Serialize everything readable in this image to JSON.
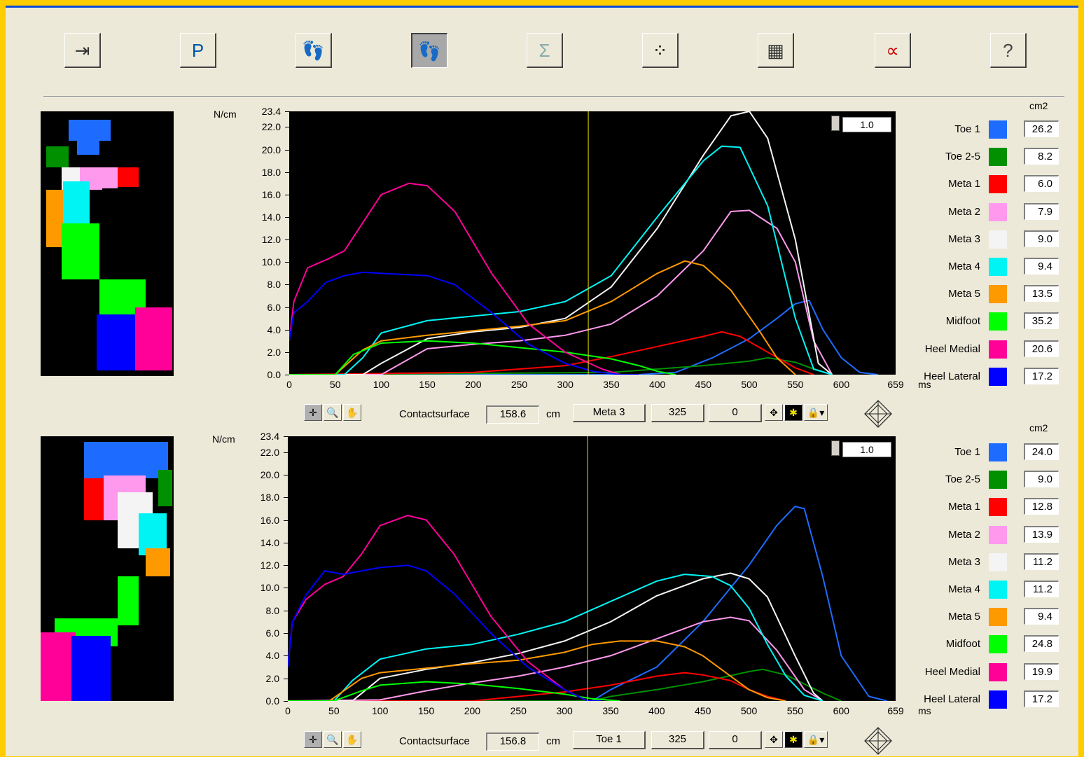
{
  "toolbar": [
    {
      "name": "exit-button",
      "icon": "exit-door-icon",
      "glyph": "⇥"
    },
    {
      "name": "p-button",
      "icon": "p-letter-icon",
      "glyph": "P"
    },
    {
      "name": "foot-regions-button",
      "icon": "foot-grid-icon",
      "glyph": "👣"
    },
    {
      "name": "foot-view-button",
      "icon": "foot-icon",
      "glyph": "👣"
    },
    {
      "name": "sum-button",
      "icon": "sigma-icon",
      "glyph": "Σ"
    },
    {
      "name": "sensor-grid-button",
      "icon": "dot-matrix-icon",
      "glyph": "⁘"
    },
    {
      "name": "table-button",
      "icon": "table-icon",
      "glyph": "▦"
    },
    {
      "name": "curve-button",
      "icon": "curve-icon",
      "glyph": "∝"
    },
    {
      "name": "help-button",
      "icon": "help-icon",
      "glyph": "?"
    }
  ],
  "legend_names": [
    "Toe 1",
    "Toe 2-5",
    "Meta 1",
    "Meta 2",
    "Meta 3",
    "Meta 4",
    "Meta 5",
    "Midfoot",
    "Heel Medial",
    "Heel Lateral"
  ],
  "legend_colors": [
    "#1e6cff",
    "#009000",
    "#ff0000",
    "#ff99ee",
    "#f4f4f4",
    "#00f4f4",
    "#ff9900",
    "#00ff00",
    "#ff0099",
    "#0000ff"
  ],
  "panels": [
    {
      "y_unit": "N/cm",
      "x_unit": "ms",
      "area_unit": "cm2",
      "zoom": "1.0",
      "values": [
        "26.2",
        "8.2",
        "6.0",
        "7.9",
        "9.0",
        "9.4",
        "13.5",
        "35.2",
        "20.6",
        "17.2"
      ],
      "contact_label": "Contactsurface",
      "contact_value": "158.6",
      "contact_unit": "cm",
      "selected_region": "Meta 3",
      "cursor_time": "325",
      "cursor_value": "0"
    },
    {
      "y_unit": "N/cm",
      "x_unit": "ms",
      "area_unit": "cm2",
      "zoom": "1.0",
      "values": [
        "24.0",
        "9.0",
        "12.8",
        "13.9",
        "11.2",
        "11.2",
        "9.4",
        "24.8",
        "19.9",
        "17.2"
      ],
      "contact_label": "Contactsurface",
      "contact_value": "156.8",
      "contact_unit": "cm",
      "selected_region": "Toe 1",
      "cursor_time": "325",
      "cursor_value": "0"
    }
  ],
  "chart_data": [
    {
      "type": "line",
      "ylim": [
        0,
        23.4
      ],
      "xlim": [
        0,
        659
      ],
      "yticks": [
        "0.0",
        "2.0",
        "4.0",
        "6.0",
        "8.0",
        "10.0",
        "12.0",
        "14.0",
        "16.0",
        "18.0",
        "20.0",
        "22.0",
        "23.4"
      ],
      "xticks": [
        "0",
        "50",
        "100",
        "150",
        "200",
        "250",
        "300",
        "350",
        "400",
        "450",
        "500",
        "550",
        "600",
        "659"
      ],
      "cursor_x": 325,
      "series": [
        {
          "name": "Toe 1",
          "x": [
            0,
            380,
            420,
            460,
            500,
            530,
            550,
            565,
            580,
            600,
            620,
            640
          ],
          "y": [
            0,
            0,
            0.2,
            1.5,
            3.2,
            5,
            6.3,
            6.6,
            4,
            1.5,
            0.2,
            0
          ]
        },
        {
          "name": "Toe 2-5",
          "x": [
            0,
            350,
            400,
            450,
            500,
            520,
            550,
            570,
            590
          ],
          "y": [
            0,
            0.2,
            0.5,
            0.8,
            1.2,
            1.5,
            1.1,
            0.5,
            0
          ]
        },
        {
          "name": "Meta 1",
          "x": [
            0,
            200,
            250,
            300,
            350,
            400,
            450,
            470,
            490,
            520,
            550,
            570
          ],
          "y": [
            0,
            0.2,
            0.5,
            0.8,
            1.6,
            2.5,
            3.4,
            3.8,
            3.4,
            2,
            0.6,
            0
          ]
        },
        {
          "name": "Meta 2",
          "x": [
            0,
            100,
            150,
            200,
            250,
            300,
            350,
            400,
            450,
            480,
            500,
            530,
            550,
            570,
            590
          ],
          "y": [
            0,
            0,
            2.3,
            2.7,
            3,
            3.5,
            4.5,
            7,
            11,
            14.5,
            14.6,
            13,
            10,
            3,
            0
          ]
        },
        {
          "name": "Meta 3",
          "x": [
            0,
            80,
            100,
            150,
            200,
            250,
            300,
            350,
            400,
            450,
            480,
            500,
            520,
            550,
            575,
            590
          ],
          "y": [
            0,
            0,
            1,
            3.2,
            3.8,
            4.2,
            5,
            7.8,
            13,
            19.5,
            23,
            23.4,
            21,
            12,
            1,
            0
          ]
        },
        {
          "name": "Meta 4",
          "x": [
            0,
            60,
            80,
            100,
            150,
            200,
            250,
            300,
            350,
            400,
            450,
            470,
            490,
            520,
            550,
            570,
            590
          ],
          "y": [
            0,
            0,
            1.5,
            3.7,
            4.8,
            5.2,
            5.6,
            6.5,
            8.8,
            14,
            19,
            20.3,
            20.2,
            15,
            5,
            0.5,
            0
          ]
        },
        {
          "name": "Meta 5",
          "x": [
            0,
            50,
            80,
            100,
            150,
            200,
            250,
            300,
            350,
            400,
            430,
            450,
            480,
            510,
            530,
            550
          ],
          "y": [
            0,
            0,
            2.2,
            3,
            3.5,
            3.9,
            4.3,
            4.8,
            6.5,
            9,
            10.1,
            9.7,
            7.5,
            4,
            1.5,
            0
          ]
        },
        {
          "name": "Midfoot",
          "x": [
            0,
            50,
            70,
            100,
            150,
            200,
            250,
            300,
            350,
            380,
            400,
            420
          ],
          "y": [
            0,
            0,
            1.8,
            2.8,
            3,
            2.8,
            2.4,
            2,
            1.4,
            0.8,
            0.3,
            0
          ]
        },
        {
          "name": "Heel Medial",
          "x": [
            0,
            5,
            20,
            40,
            60,
            80,
            100,
            130,
            150,
            180,
            220,
            260,
            300,
            340,
            360,
            380
          ],
          "y": [
            3,
            6.5,
            9.5,
            10.2,
            11,
            13.5,
            16,
            17,
            16.8,
            14.5,
            9,
            4.5,
            2,
            0.5,
            0,
            0
          ]
        },
        {
          "name": "Heel Lateral",
          "x": [
            0,
            5,
            20,
            40,
            60,
            80,
            100,
            150,
            180,
            220,
            260,
            300,
            330,
            360,
            380
          ],
          "y": [
            3,
            5.5,
            6.5,
            8.2,
            8.8,
            9.1,
            9,
            8.8,
            8,
            5.5,
            2.7,
            1,
            0.3,
            0,
            0
          ]
        }
      ]
    },
    {
      "type": "line",
      "ylim": [
        0,
        23.4
      ],
      "xlim": [
        0,
        659
      ],
      "yticks": [
        "0.0",
        "2.0",
        "4.0",
        "6.0",
        "8.0",
        "10.0",
        "12.0",
        "14.0",
        "16.0",
        "18.0",
        "20.0",
        "22.0",
        "23.4"
      ],
      "xticks": [
        "0",
        "50",
        "100",
        "150",
        "200",
        "250",
        "300",
        "350",
        "400",
        "450",
        "500",
        "550",
        "600",
        "659"
      ],
      "cursor_x": 325,
      "series": [
        {
          "name": "Toe 1",
          "x": [
            0,
            330,
            350,
            400,
            450,
            500,
            530,
            550,
            560,
            580,
            600,
            630,
            650
          ],
          "y": [
            0,
            0,
            1,
            3,
            7,
            12,
            15.5,
            17.2,
            17,
            11,
            4,
            0.4,
            0
          ]
        },
        {
          "name": "Toe 2-5",
          "x": [
            0,
            330,
            350,
            400,
            450,
            500,
            515,
            540,
            560,
            580,
            600
          ],
          "y": [
            0,
            0,
            0.4,
            1,
            1.7,
            2.6,
            2.8,
            2.3,
            1.5,
            0.7,
            0
          ]
        },
        {
          "name": "Meta 1",
          "x": [
            0,
            200,
            250,
            300,
            350,
            400,
            430,
            450,
            480,
            500,
            520,
            540
          ],
          "y": [
            0,
            0,
            0.4,
            0.8,
            1.4,
            2.2,
            2.5,
            2.3,
            1.8,
            1,
            0.4,
            0
          ]
        },
        {
          "name": "Meta 2",
          "x": [
            0,
            100,
            150,
            200,
            250,
            300,
            350,
            400,
            450,
            480,
            500,
            530,
            560,
            580
          ],
          "y": [
            0,
            0.1,
            0.9,
            1.6,
            2.2,
            3,
            4,
            5.5,
            7,
            7.4,
            7.1,
            4.5,
            1,
            0
          ]
        },
        {
          "name": "Meta 3",
          "x": [
            0,
            70,
            100,
            150,
            200,
            250,
            300,
            350,
            400,
            450,
            480,
            500,
            520,
            550,
            570,
            580
          ],
          "y": [
            0,
            0,
            2,
            2.8,
            3.4,
            4.2,
            5.3,
            7,
            9.3,
            10.8,
            11.3,
            10.8,
            9.2,
            4,
            0.7,
            0
          ]
        },
        {
          "name": "Meta 4",
          "x": [
            0,
            50,
            70,
            100,
            150,
            200,
            250,
            300,
            350,
            400,
            430,
            460,
            480,
            500,
            520,
            540,
            560,
            580
          ],
          "y": [
            0,
            0,
            1.8,
            3.7,
            4.6,
            5,
            5.9,
            7,
            8.8,
            10.6,
            11.2,
            11,
            10.2,
            8.2,
            5,
            2.2,
            0.5,
            0
          ]
        },
        {
          "name": "Meta 5",
          "x": [
            0,
            45,
            80,
            100,
            150,
            200,
            250,
            300,
            330,
            360,
            400,
            430,
            450,
            480,
            500,
            520,
            540
          ],
          "y": [
            0,
            0,
            2,
            2.5,
            2.9,
            3.3,
            3.6,
            4.3,
            5,
            5.3,
            5.3,
            4.8,
            4,
            2.2,
            1,
            0.3,
            0
          ]
        },
        {
          "name": "Midfoot",
          "x": [
            0,
            50,
            80,
            100,
            150,
            200,
            250,
            300,
            330,
            360
          ],
          "y": [
            0,
            0,
            0.9,
            1.4,
            1.7,
            1.5,
            1.1,
            0.6,
            0.2,
            0
          ]
        },
        {
          "name": "Heel Medial",
          "x": [
            0,
            5,
            20,
            40,
            60,
            80,
            100,
            130,
            150,
            180,
            220,
            260,
            300,
            325,
            340
          ],
          "y": [
            3,
            7,
            9,
            10.3,
            11,
            13,
            15.5,
            16.4,
            16,
            13,
            7.5,
            3.5,
            1,
            0,
            0
          ]
        },
        {
          "name": "Heel Lateral",
          "x": [
            0,
            5,
            20,
            40,
            60,
            80,
            100,
            130,
            150,
            180,
            220,
            260,
            300,
            325,
            340
          ],
          "y": [
            3,
            7,
            9.4,
            11.5,
            11.2,
            11.5,
            11.8,
            12,
            11.5,
            9.5,
            6,
            3,
            1,
            0,
            0
          ]
        }
      ]
    }
  ]
}
